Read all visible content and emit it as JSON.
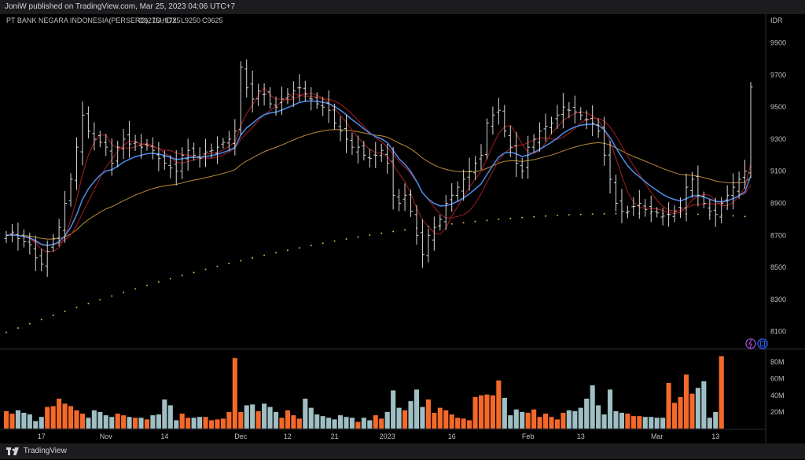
{
  "publisher_line": "JoniW published on TradingView.com, Mar 25, 2023 04:06 UTC+7",
  "footer_brand": "TradingView",
  "accent_colors": {
    "up_volume": "#f4692a",
    "down_volume": "#9fbfc4",
    "fast_ma": "#a82020",
    "mid_ma": "#4a86e0",
    "slow_ma": "#b98a3a",
    "long_ma_dotted": "#d4b84a",
    "bars": "#d8d8d8"
  },
  "chart_data": {
    "type": "ohlc",
    "symbol_label": "PT BANK NEGARA INDONESIA(PERSERO), 1D, IDX",
    "ohlc_legend": [
      {
        "key": "O",
        "value": "9275"
      },
      {
        "key": "H",
        "value": "9725"
      },
      {
        "key": "L",
        "value": "9250"
      },
      {
        "key": "C",
        "value": "9625"
      }
    ],
    "currency": "IDR",
    "y_ticks": [
      "9900",
      "9700",
      "9500",
      "9300",
      "9100",
      "8900",
      "8700",
      "8500",
      "8300",
      "8100"
    ],
    "ylim": [
      8000,
      10060
    ],
    "x_ticks": [
      {
        "i": 6,
        "label": "17"
      },
      {
        "i": 17,
        "label": "Nov"
      },
      {
        "i": 27,
        "label": "14"
      },
      {
        "i": 40,
        "label": "Dec"
      },
      {
        "i": 48,
        "label": "12"
      },
      {
        "i": 56,
        "label": "21"
      },
      {
        "i": 65,
        "label": "2023"
      },
      {
        "i": 76,
        "label": "16"
      },
      {
        "i": 89,
        "label": "Feb"
      },
      {
        "i": 98,
        "label": "13"
      },
      {
        "i": 111,
        "label": "Mar"
      },
      {
        "i": 121,
        "label": "13"
      }
    ],
    "volume_ticks": [
      "80M",
      "60M",
      "40M",
      "20M"
    ],
    "volume_max": 90,
    "closes": [
      8700,
      8720,
      8680,
      8660,
      8640,
      8560,
      8520,
      8600,
      8680,
      8750,
      8900,
      9050,
      9250,
      9450,
      9350,
      9300,
      9280,
      9250,
      9150,
      9250,
      9300,
      9270,
      9280,
      9250,
      9260,
      9230,
      9180,
      9150,
      9120,
      9100,
      9200,
      9230,
      9200,
      9180,
      9220,
      9230,
      9250,
      9280,
      9300,
      9350,
      9750,
      9620,
      9550,
      9600,
      9580,
      9520,
      9500,
      9550,
      9580,
      9600,
      9620,
      9580,
      9550,
      9520,
      9500,
      9480,
      9400,
      9350,
      9300,
      9250,
      9250,
      9200,
      9180,
      9200,
      9230,
      9150,
      8950,
      8900,
      8950,
      8850,
      8700,
      8580,
      8700,
      8750,
      8800,
      8900,
      8950,
      9000,
      9050,
      9100,
      9150,
      9200,
      9400,
      9450,
      9480,
      9350,
      9250,
      9150,
      9100,
      9250,
      9300,
      9350,
      9380,
      9400,
      9450,
      9500,
      9480,
      9470,
      9450,
      9420,
      9400,
      9350,
      9200,
      9050,
      8900,
      8850,
      8850,
      8880,
      8900,
      8860,
      8850,
      8840,
      8820,
      8830,
      8850,
      8870,
      9000,
      9050,
      8950,
      8900,
      8850,
      8830,
      8900,
      8950,
      9000,
      9050,
      9100,
      9625
    ],
    "volumes": [
      21,
      18,
      22,
      19,
      17,
      9,
      14,
      26,
      27,
      36,
      30,
      27,
      22,
      18,
      13,
      22,
      20,
      16,
      14,
      18,
      16,
      14,
      13,
      13,
      11,
      16,
      17,
      35,
      28,
      10,
      18,
      13,
      13,
      14,
      14,
      10,
      11,
      12,
      20,
      85,
      20,
      28,
      29,
      21,
      30,
      26,
      20,
      13,
      22,
      16,
      12,
      36,
      25,
      17,
      15,
      13,
      11,
      16,
      14,
      13,
      8,
      13,
      10,
      16,
      12,
      20,
      46,
      25,
      22,
      33,
      47,
      26,
      35,
      19,
      25,
      22,
      17,
      13,
      12,
      10,
      38,
      40,
      41,
      40,
      58,
      37,
      16,
      23,
      20,
      19,
      23,
      14,
      18,
      14,
      11,
      19,
      22,
      21,
      25,
      36,
      52,
      28,
      17,
      47,
      21,
      19,
      18,
      15,
      15,
      14,
      14,
      13,
      13,
      55,
      31,
      38,
      65,
      42,
      49,
      57,
      13,
      20,
      87
    ]
  }
}
